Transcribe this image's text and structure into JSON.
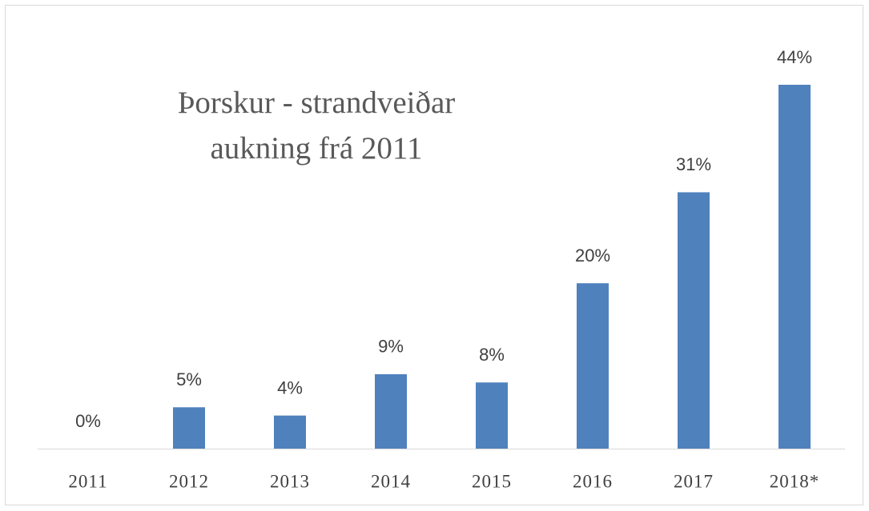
{
  "chart_data": {
    "type": "bar",
    "title": [
      "Þorskur  -  strandveiðar",
      "aukning frá 2011"
    ],
    "categories": [
      "2011",
      "2012",
      "2013",
      "2014",
      "2015",
      "2016",
      "2017",
      "2018*"
    ],
    "values": [
      0,
      5,
      4,
      9,
      8,
      20,
      31,
      44
    ],
    "value_labels": [
      "0%",
      "5%",
      "4%",
      "9%",
      "8%",
      "20%",
      "31%",
      "44%"
    ],
    "color": "#4f81bd"
  }
}
